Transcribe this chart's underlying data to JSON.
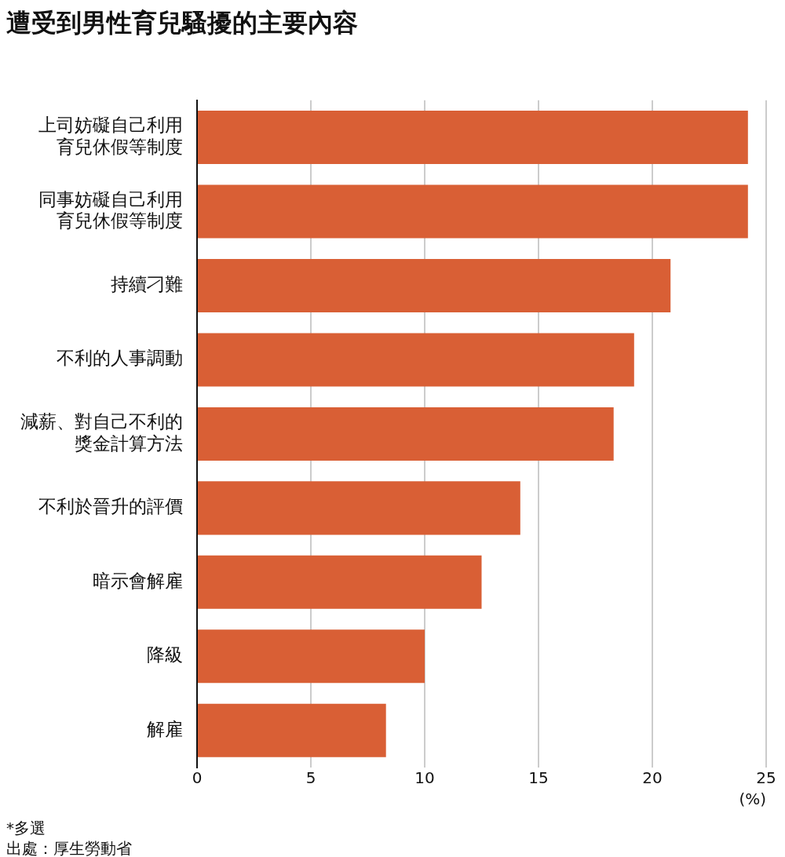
{
  "chart_data": {
    "type": "bar",
    "orientation": "horizontal",
    "title": "遭受到男性育兒騷擾的主要內容",
    "categories": [
      "上司妨礙自己利用育兒休假等制度",
      "同事妨礙自己利用育兒休假等制度",
      "持續刁難",
      "不利的人事調動",
      "減薪、對自己不利的獎金計算方法",
      "不利於晉升的評價",
      "暗示會解雇",
      "降級",
      "解雇"
    ],
    "values": [
      24.2,
      24.2,
      20.8,
      19.2,
      18.3,
      14.2,
      12.5,
      10.0,
      8.3
    ],
    "color": "#d95f35",
    "xlim": [
      0,
      25
    ],
    "xticks": [
      0,
      5,
      10,
      15,
      20,
      25
    ],
    "xlabel": "(%)",
    "grid": "x",
    "annotations": [
      "*多選",
      "出處：厚生勞動省"
    ]
  }
}
